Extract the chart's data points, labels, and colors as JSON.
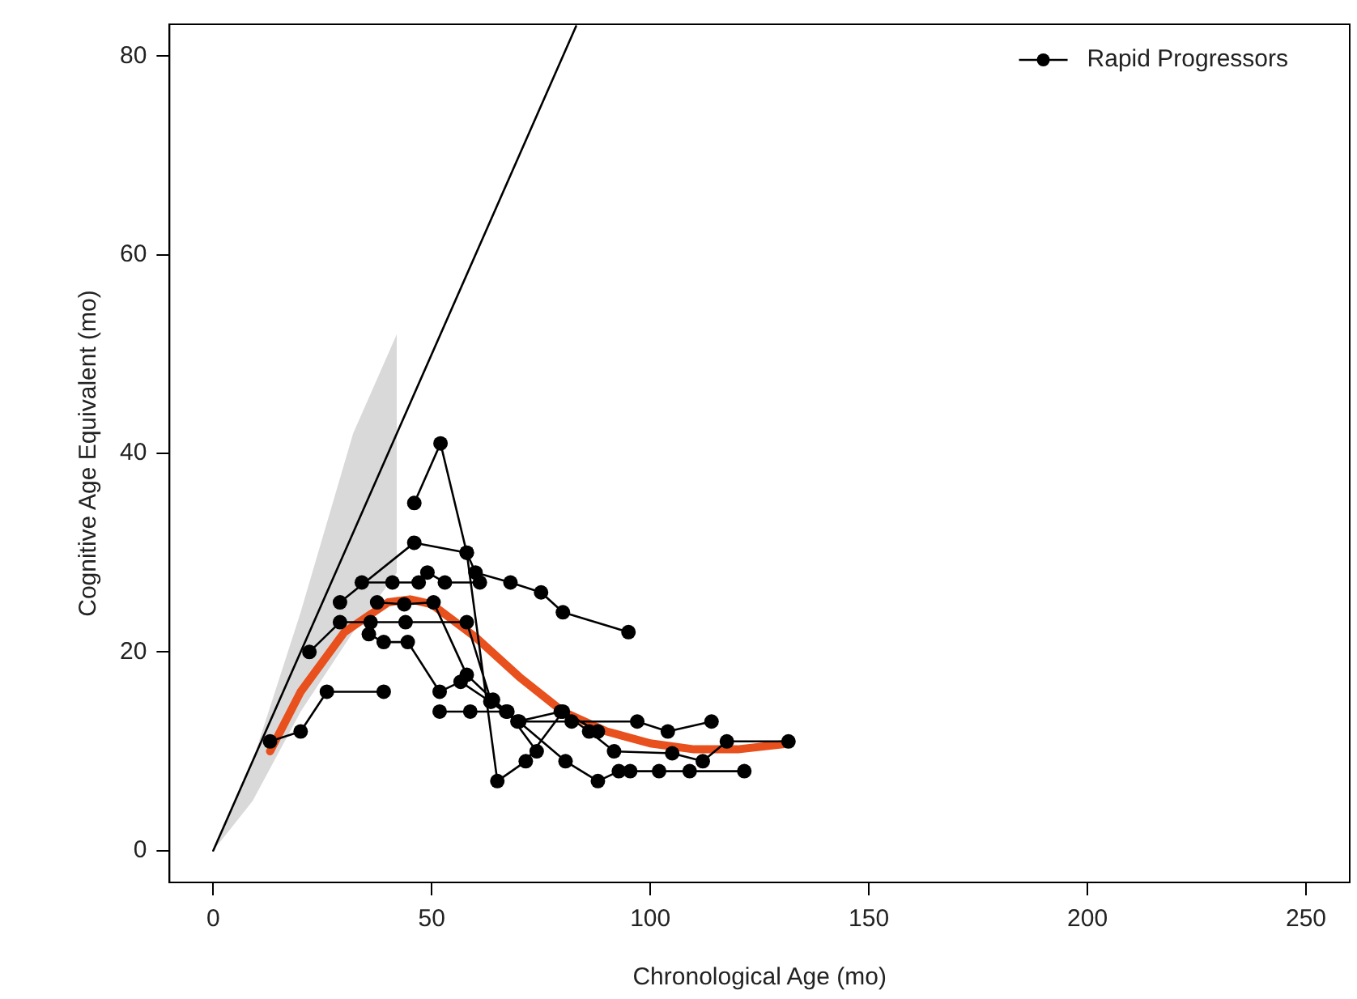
{
  "chart_data": {
    "type": "line",
    "xlabel": "Chronological Age (mo)",
    "ylabel": "Cognitive Age Equivalent (mo)",
    "xlim": [
      -10,
      260
    ],
    "ylim": [
      -3.2,
      83.2
    ],
    "xticks": [
      0,
      50,
      100,
      150,
      200,
      250
    ],
    "yticks": [
      0,
      20,
      40,
      60,
      80
    ],
    "grid": false,
    "legend": "top right",
    "series": [
      {
        "type": "area",
        "color": "#d9d9d9",
        "marker": "none",
        "x": [
          0,
          9,
          20,
          32,
          42
        ],
        "values": [
          null,
          null,
          null,
          null,
          null
        ],
        "lower": [
          0,
          5,
          14,
          22,
          28
        ],
        "upper": [
          0,
          9,
          24,
          42,
          52
        ]
      },
      {
        "color": "#000000",
        "marker": "none",
        "x": [
          0,
          83
        ],
        "values": [
          0,
          83
        ]
      },
      {
        "name": "Rapid Progressors",
        "color": "#000000",
        "marker": "circle",
        "x": [
          13,
          20,
          26,
          39,
          null,
          22,
          29,
          36,
          44,
          58,
          63.6,
          67,
          70,
          82,
          97,
          104,
          114,
          null,
          29,
          46,
          58,
          60,
          68,
          75,
          80,
          95,
          null,
          46,
          52,
          58,
          65,
          71.5,
          80,
          88,
          null,
          34,
          41,
          47,
          49,
          53,
          61,
          null,
          37.5,
          43.7,
          50.4,
          58,
          64,
          80.6,
          88,
          92.8,
          95.4,
          102,
          109,
          121.5,
          null,
          35.6,
          39,
          44.5,
          51.8,
          56.6,
          63.4,
          69.6,
          79.5,
          86,
          91.7,
          105,
          112,
          117.5,
          131.6,
          null,
          51.8,
          58.8,
          67.3,
          74
        ],
        "values": [
          11,
          12,
          16,
          16,
          null,
          20,
          23,
          23,
          23,
          23,
          15,
          14,
          13,
          13,
          13,
          12,
          13,
          null,
          25,
          31,
          30,
          28,
          27,
          26,
          24,
          22,
          null,
          35,
          41,
          30,
          7,
          9,
          14,
          12,
          null,
          27,
          27,
          27,
          28,
          27,
          27,
          null,
          25,
          24.8,
          25,
          17.7,
          15.2,
          9,
          7,
          8,
          8,
          8,
          8,
          8,
          null,
          21.8,
          21,
          21,
          16,
          17,
          15,
          13,
          14,
          12,
          10,
          9.8,
          9,
          11,
          11,
          null,
          14,
          14,
          14,
          10
        ]
      },
      {
        "color": "#e8501e",
        "marker": "none",
        "x": [
          13,
          20,
          30,
          40,
          45,
          50,
          60,
          70,
          80,
          90,
          100,
          110,
          120,
          132
        ],
        "values": [
          10,
          16,
          22,
          25,
          25.3,
          24.8,
          21.5,
          17.5,
          14,
          12,
          10.8,
          10.2,
          10.2,
          10.8
        ]
      }
    ]
  }
}
